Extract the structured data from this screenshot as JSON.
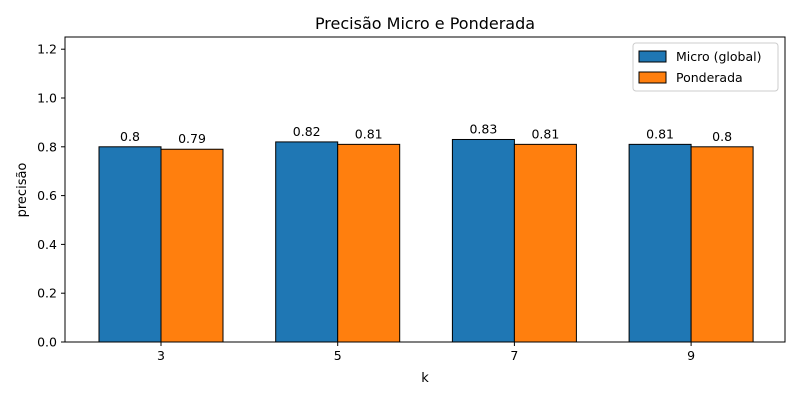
{
  "chart_data": {
    "type": "bar",
    "title": "Precisão Micro e Ponderada",
    "xlabel": "k",
    "ylabel": "precisão",
    "categories": [
      "3",
      "5",
      "7",
      "9"
    ],
    "series": [
      {
        "name": "Micro (global)",
        "values": [
          0.8,
          0.82,
          0.83,
          0.81
        ],
        "labels": [
          "0.8",
          "0.82",
          "0.83",
          "0.81"
        ],
        "color": "#1f77b4"
      },
      {
        "name": "Ponderada",
        "values": [
          0.79,
          0.81,
          0.81,
          0.8
        ],
        "labels": [
          "0.79",
          "0.81",
          "0.81",
          "0.8"
        ],
        "color": "#ff7f0e"
      }
    ],
    "ylim": [
      0,
      1.25
    ],
    "yticks": [
      "0.0",
      "0.2",
      "0.4",
      "0.6",
      "0.8",
      "1.0",
      "1.2"
    ],
    "grid": false,
    "legend_position": "top-right"
  }
}
